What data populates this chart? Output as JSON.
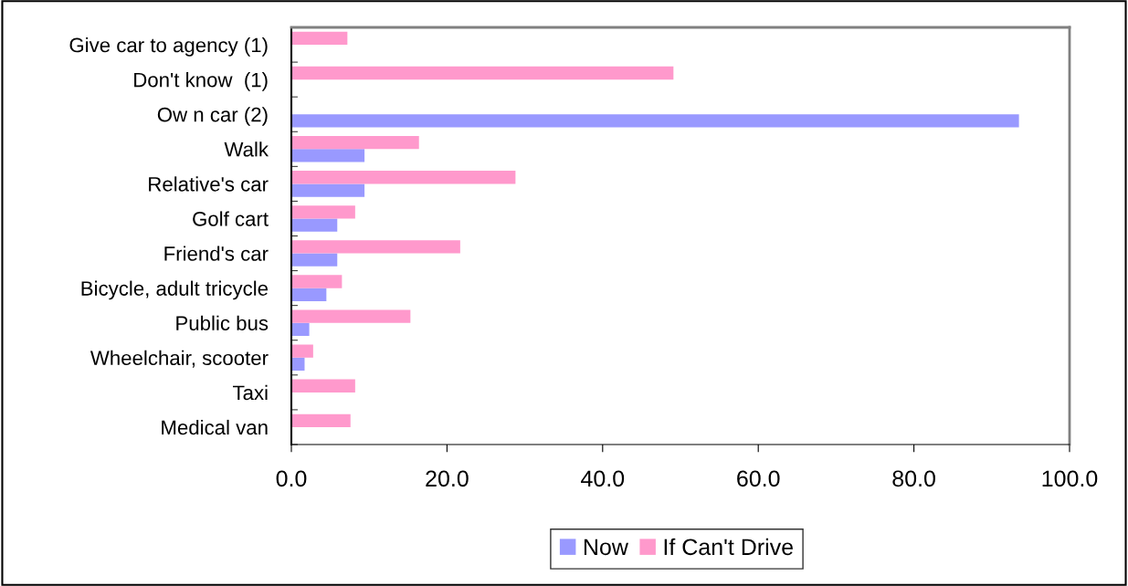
{
  "chart_data": {
    "type": "bar",
    "orientation": "horizontal",
    "categories": [
      "Give car to agency (1)",
      "Don't know  (1)",
      "Ow n car (2)",
      "Walk",
      "Relative's car",
      "Golf cart",
      "Friend's car",
      "Bicycle, adult tricycle",
      "Public bus",
      "Wheelchair, scooter",
      "Taxi",
      "Medical van"
    ],
    "series": [
      {
        "name": "Now",
        "color": "#9999ff",
        "values": [
          null,
          null,
          93.5,
          9.4,
          9.4,
          5.9,
          5.9,
          4.5,
          2.3,
          1.7,
          null,
          null
        ]
      },
      {
        "name": "If Can't Drive",
        "color": "#ff99cc",
        "values": [
          7.2,
          49.1,
          null,
          16.4,
          28.8,
          8.2,
          21.7,
          6.5,
          15.3,
          2.8,
          8.2,
          7.6
        ]
      }
    ],
    "xlim": [
      0,
      100
    ],
    "xticks": [
      {
        "value": 0,
        "label": "0.0"
      },
      {
        "value": 20,
        "label": "20.0"
      },
      {
        "value": 40,
        "label": "40.0"
      },
      {
        "value": 60,
        "label": "60.0"
      },
      {
        "value": 80,
        "label": "80.0"
      },
      {
        "value": 100,
        "label": "100.0"
      }
    ],
    "grid": false,
    "legend": "bottom"
  }
}
